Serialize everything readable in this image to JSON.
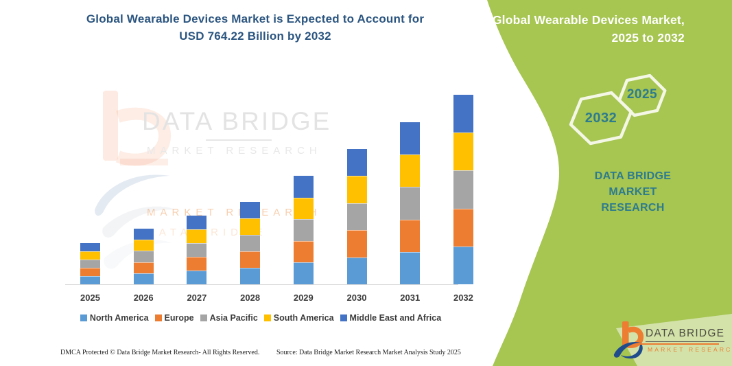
{
  "header": {
    "title_line1": "Global Wearable Devices Market is Expected to Account for",
    "title_line2": "USD 764.22 Billion by 2032"
  },
  "panel": {
    "title_line1": "Global Wearable Devices Market,",
    "title_line2": "2025 to 2032",
    "hexagon_back_year": "2032",
    "hexagon_front_year": "2025",
    "brand_line1": "DATA BRIDGE MARKET",
    "brand_line2": "RESEARCH"
  },
  "watermark": {
    "brand": "DATA BRIDGE",
    "sub": "MARKET RESEARCH",
    "ghost1": "MARKET RESEARCH",
    "ghost2": "DATA BRIDGE"
  },
  "logo": {
    "brand": "DATA BRIDGE",
    "sub": "MARKET RESEARCH"
  },
  "footer": {
    "left": "DMCA Protected © Data Bridge Market Research-  All Rights Reserved.",
    "right": "Source: Data Bridge Market Research  Market Analysis Study 2025"
  },
  "colors": {
    "panel_green": "#a6c551",
    "teal": "#2d7b8e",
    "title_blue": "#2b5580",
    "logo_orange": "#ed7d31",
    "logo_blue": "#1f4c8c"
  },
  "chart_data": {
    "type": "bar",
    "stacked": true,
    "title": "Global Wearable Devices Market is Expected to Account for USD 764.22 Billion by 2032",
    "unit": "USD Billion (estimated from bar heights; 2032 total = 764.22)",
    "categories": [
      "2025",
      "2026",
      "2027",
      "2028",
      "2029",
      "2030",
      "2031",
      "2032"
    ],
    "series": [
      {
        "name": "North America",
        "color": "#5B9BD5",
        "values": [
          33.2,
          44.9,
          55.4,
          66.5,
          87.5,
          109.1,
          130.7,
          152.8
        ]
      },
      {
        "name": "Europe",
        "color": "#ED7D31",
        "values": [
          33.2,
          44.9,
          55.4,
          66.5,
          87.5,
          109.1,
          130.7,
          152.8
        ]
      },
      {
        "name": "Asia Pacific",
        "color": "#A5A5A5",
        "values": [
          33.2,
          44.9,
          55.4,
          66.5,
          87.5,
          109.1,
          130.7,
          152.8
        ]
      },
      {
        "name": "South America",
        "color": "#FFC000",
        "values": [
          33.2,
          44.9,
          55.4,
          66.5,
          87.5,
          109.1,
          130.7,
          152.8
        ]
      },
      {
        "name": "Middle East and Africa",
        "color": "#4472C4",
        "values": [
          33.2,
          44.9,
          55.4,
          66.5,
          87.5,
          109.1,
          130.7,
          152.8
        ]
      }
    ],
    "totals_estimated": [
      166.2,
      224.3,
      276.9,
      332.3,
      437.5,
      545.5,
      653.5,
      764.2
    ],
    "xlabel": "",
    "ylabel": "",
    "ylim": [
      0,
      800
    ],
    "grid": false,
    "y_axis_shown": false,
    "legend_position": "bottom"
  }
}
